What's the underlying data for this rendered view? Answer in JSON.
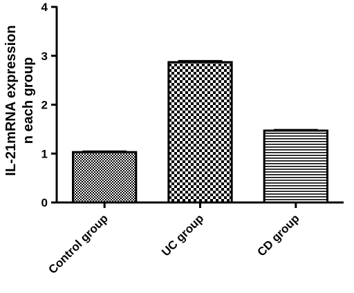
{
  "chart_data": {
    "type": "bar",
    "categories": [
      "Control group",
      "UC group",
      "CD group"
    ],
    "values": [
      1.03,
      2.87,
      1.47
    ],
    "error": [
      0.02,
      0.03,
      0.02
    ],
    "ylabel_lines": [
      "IL-21mRNA expression",
      "n each group"
    ],
    "ylim": [
      0,
      4
    ],
    "yticks": [
      "0",
      "1",
      "2",
      "3",
      "4"
    ],
    "grid": false,
    "legend": "none",
    "bar_patterns": [
      "fine-checker",
      "coarse-checker",
      "horizontal-stripes"
    ],
    "colors": {
      "bar_fill": "#ffffff",
      "stroke": "#000000"
    }
  }
}
